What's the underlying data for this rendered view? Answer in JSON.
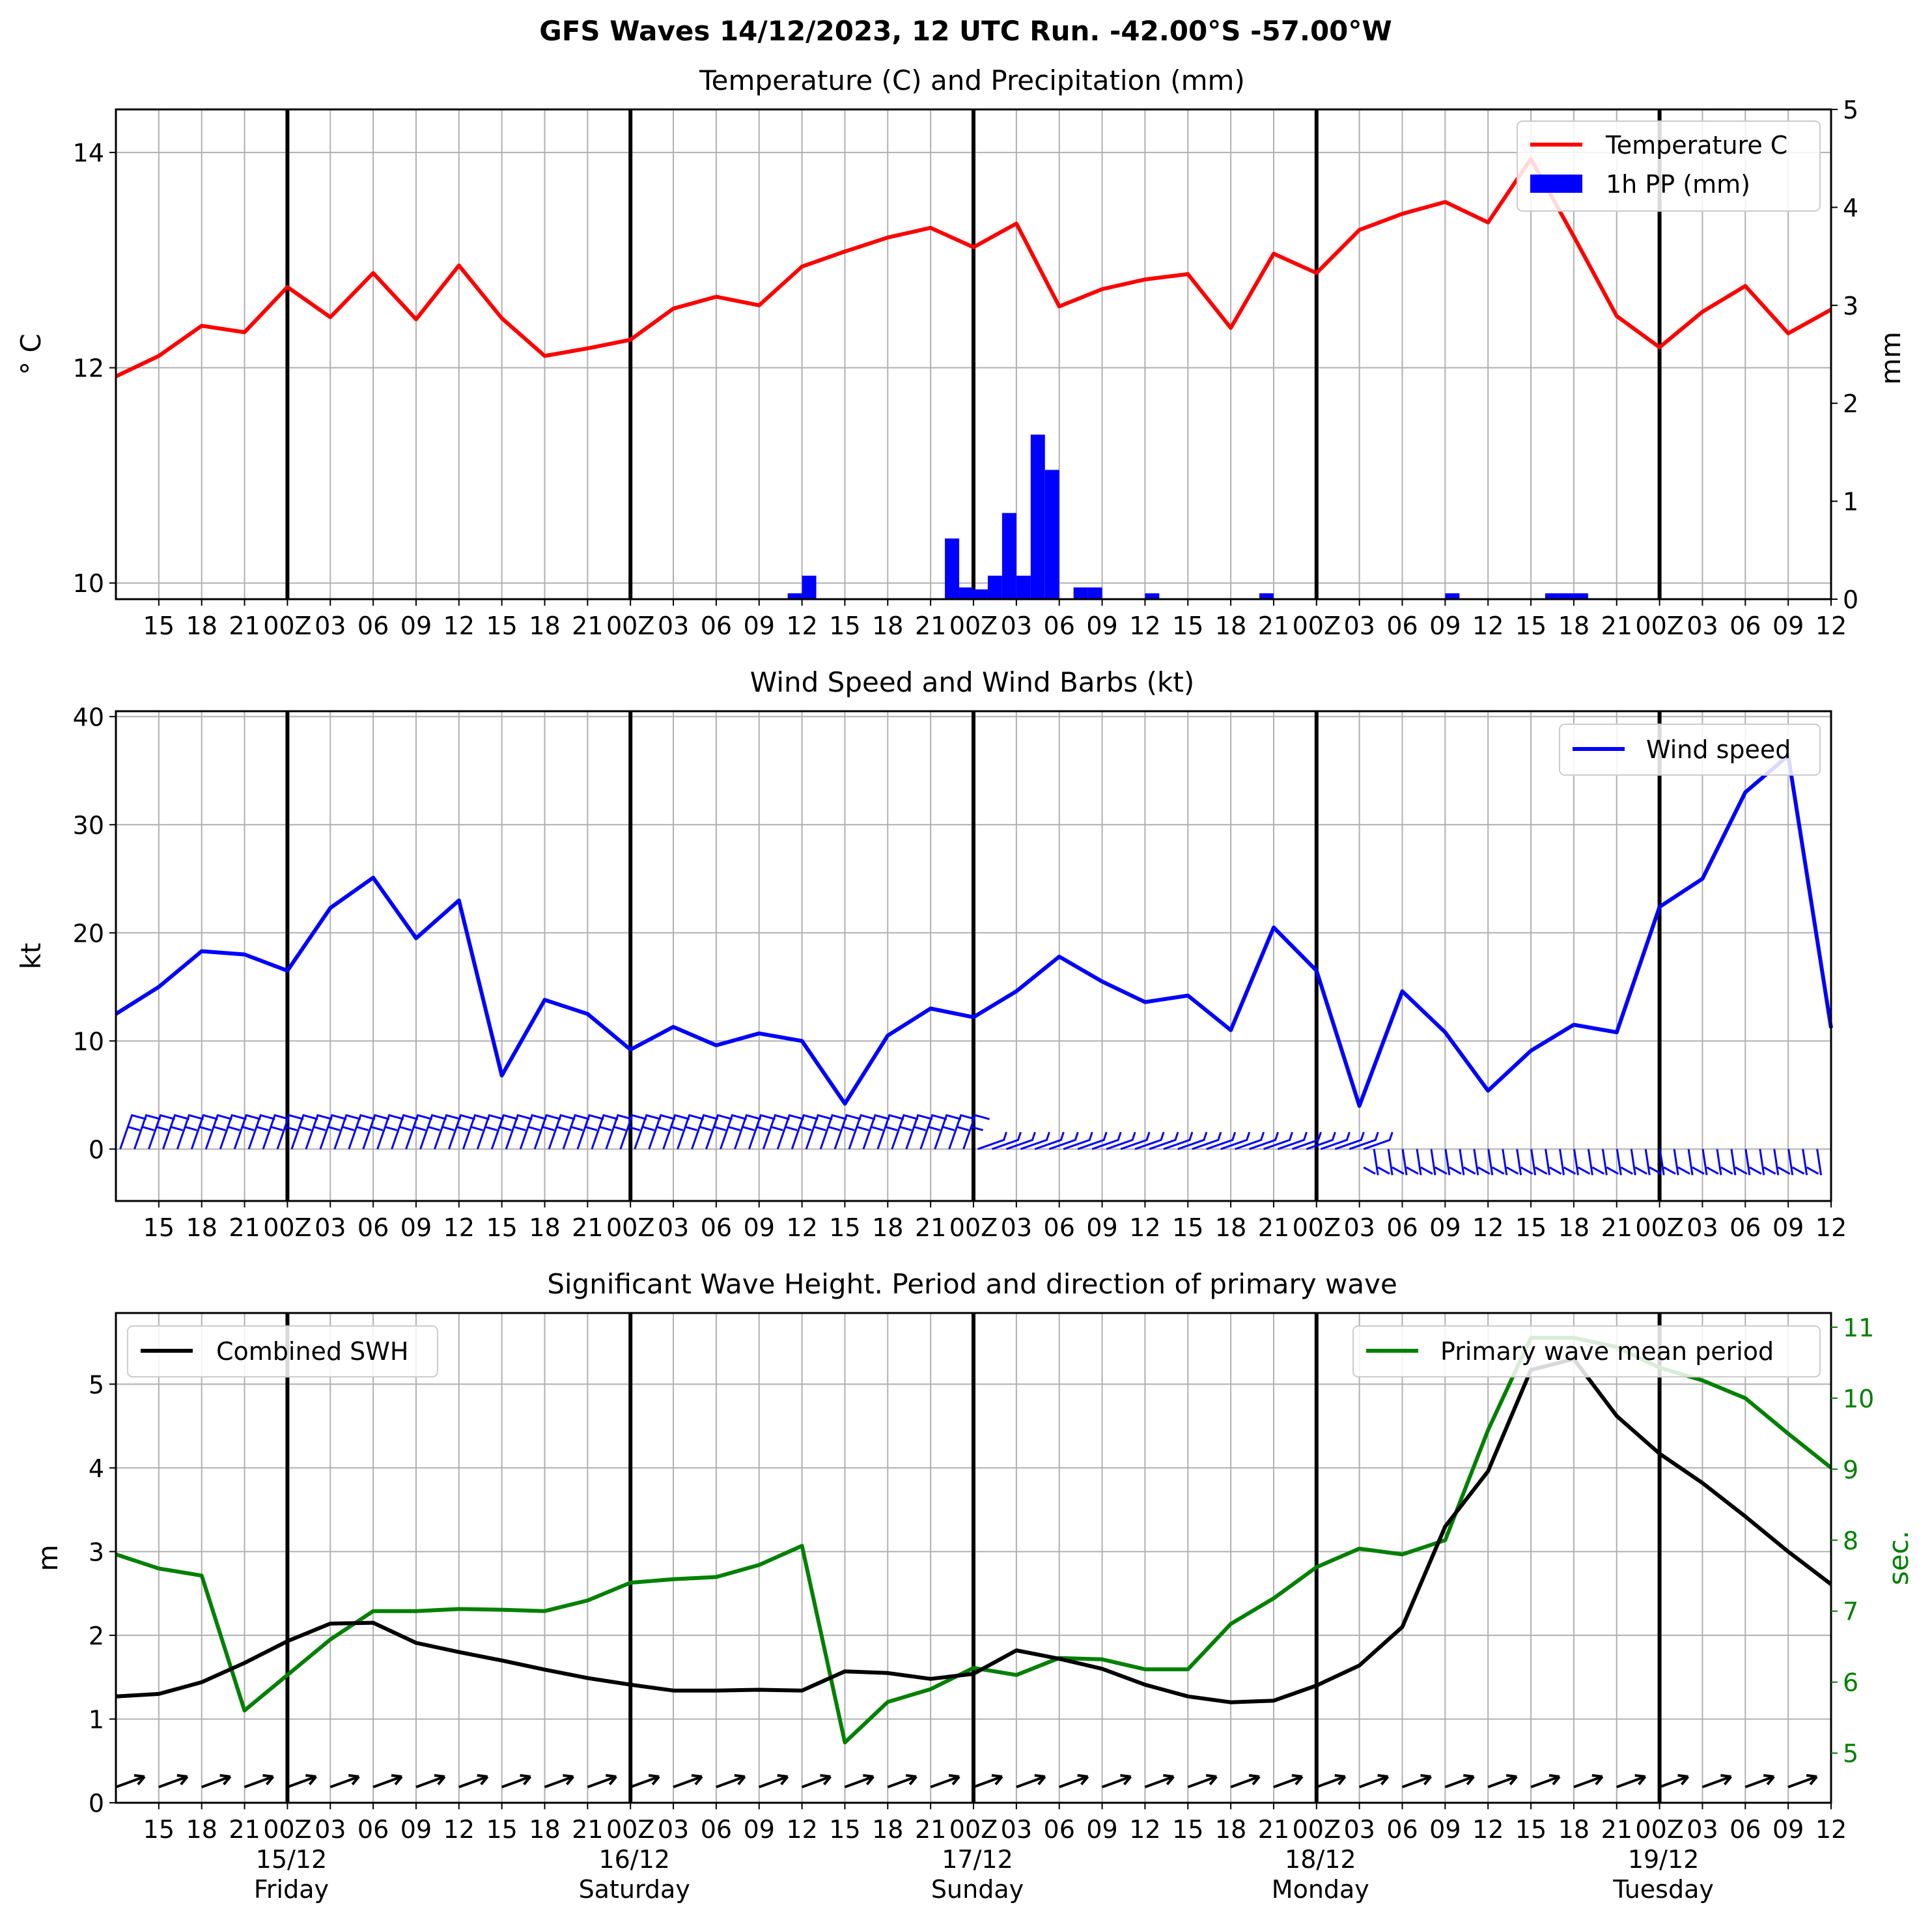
{
  "figure": {
    "title": "GFS Waves 14/12/2023, 12 UTC Run. -42.00°S -57.00°W",
    "day_labels": [
      {
        "date": "15/12",
        "day": "Friday"
      },
      {
        "date": "16/12",
        "day": "Saturday"
      },
      {
        "date": "17/12",
        "day": "Sunday"
      },
      {
        "date": "18/12",
        "day": "Monday"
      },
      {
        "date": "19/12",
        "day": "Tuesday"
      }
    ],
    "x_tick_labels": [
      "15",
      "18",
      "21",
      "00Z",
      "03",
      "06",
      "09",
      "12",
      "15",
      "18",
      "21",
      "00Z",
      "03",
      "06",
      "09",
      "12",
      "15",
      "18",
      "21",
      "00Z",
      "03",
      "06",
      "09",
      "12",
      "15",
      "18",
      "21",
      "00Z",
      "03",
      "06",
      "09",
      "12",
      "15",
      "18",
      "21",
      "00Z",
      "03",
      "06",
      "09",
      "12"
    ]
  },
  "chart_data": [
    {
      "type": "line",
      "title": "Temperature (C) and Precipitation (mm)",
      "x_unit": "hours since 14/12/2023 12 UTC",
      "ylabel": "° C",
      "y2label": "mm",
      "ylim": [
        9.85,
        14.4
      ],
      "y2lim": [
        0,
        5
      ],
      "yticks": [
        10,
        12,
        14
      ],
      "y2ticks": [
        0,
        1,
        2,
        3,
        4,
        5
      ],
      "legend_position": "top-right",
      "grid": true,
      "series": [
        {
          "name": "Temperature C",
          "color": "#ff0000",
          "x": [
            0,
            3,
            6,
            9,
            12,
            15,
            18,
            21,
            24,
            27,
            30,
            33,
            36,
            39,
            42,
            45,
            48,
            51,
            54,
            57,
            60,
            63,
            66,
            69,
            72,
            75,
            78,
            81,
            84,
            87,
            90,
            93,
            96,
            99,
            102,
            105,
            108,
            111,
            114,
            117,
            120
          ],
          "y": [
            11.92,
            12.11,
            12.39,
            12.33,
            12.75,
            12.47,
            12.88,
            12.45,
            12.95,
            12.46,
            12.11,
            12.18,
            12.26,
            12.55,
            12.66,
            12.58,
            12.94,
            13.08,
            13.21,
            13.3,
            13.12,
            13.34,
            12.57,
            12.73,
            12.82,
            12.87,
            12.37,
            13.06,
            12.88,
            13.28,
            13.43,
            13.54,
            13.35,
            13.94,
            13.22,
            12.48,
            12.19,
            12.52,
            12.76,
            12.32,
            12.54
          ]
        },
        {
          "name": "1h PP (mm)",
          "color": "#0000ff",
          "kind": "bar",
          "x": [
            47.5,
            48.5,
            58.5,
            59.5,
            60.5,
            61.5,
            62.5,
            63.5,
            64.5,
            65.5,
            67.5,
            68.5,
            72.5,
            80.5,
            93.5,
            100.5,
            101.5,
            102.5
          ],
          "y": [
            0.06,
            0.24,
            0.62,
            0.12,
            0.1,
            0.24,
            0.88,
            0.24,
            1.68,
            1.32,
            0.12,
            0.12,
            0.06,
            0.06,
            0.06,
            0.06,
            0.06,
            0.06
          ]
        }
      ]
    },
    {
      "type": "line",
      "title": "Wind Speed and Wind Barbs (kt)",
      "ylabel": "kt",
      "ylim": [
        -4.8,
        40.5
      ],
      "yticks": [
        0,
        10,
        20,
        30,
        40
      ],
      "legend_position": "top-right",
      "grid": true,
      "series": [
        {
          "name": "Wind speed",
          "color": "#0000ff",
          "x": [
            0,
            3,
            6,
            9,
            12,
            15,
            18,
            21,
            24,
            27,
            30,
            33,
            36,
            39,
            42,
            45,
            48,
            51,
            54,
            57,
            60,
            63,
            66,
            69,
            72,
            75,
            78,
            81,
            84,
            87,
            90,
            93,
            96,
            99,
            102,
            105,
            108,
            111,
            114,
            117,
            120
          ],
          "y": [
            12.5,
            15.0,
            18.3,
            18.0,
            16.5,
            22.3,
            25.1,
            19.5,
            23.0,
            6.8,
            13.8,
            12.5,
            9.2,
            11.3,
            9.6,
            10.7,
            10.0,
            4.2,
            10.5,
            13.0,
            12.2,
            14.6,
            17.8,
            15.5,
            13.6,
            14.2,
            11.0,
            20.5,
            16.5,
            4.0,
            14.6,
            10.8,
            5.4,
            9.1,
            11.5,
            10.8,
            22.4,
            25.0,
            33.0,
            36.4,
            11.2
          ]
        }
      ],
      "barbs": {
        "color": "#0000ff",
        "count": 120
      }
    },
    {
      "type": "line",
      "title": "Significant Wave Height. Period and direction of primary wave",
      "ylabel": "m",
      "y2label": "sec.",
      "ylim": [
        0,
        5.85
      ],
      "y2lim": [
        4.3,
        11.2
      ],
      "yticks": [
        0,
        1,
        2,
        3,
        4,
        5
      ],
      "y2ticks": [
        5,
        6,
        7,
        8,
        9,
        10,
        11
      ],
      "grid": true,
      "series": [
        {
          "name": "Combined SWH",
          "color": "#000000",
          "legend_position": "top-left",
          "x": [
            0,
            3,
            6,
            9,
            12,
            15,
            18,
            21,
            24,
            27,
            30,
            33,
            36,
            39,
            42,
            45,
            48,
            51,
            54,
            57,
            60,
            63,
            66,
            69,
            72,
            75,
            78,
            81,
            84,
            87,
            90,
            93,
            96,
            99,
            102,
            105,
            108,
            111,
            114,
            117,
            120
          ],
          "y": [
            1.27,
            1.3,
            1.44,
            1.67,
            1.93,
            2.14,
            2.15,
            1.91,
            1.8,
            1.7,
            1.59,
            1.49,
            1.41,
            1.34,
            1.34,
            1.35,
            1.34,
            1.57,
            1.55,
            1.48,
            1.54,
            1.82,
            1.72,
            1.6,
            1.41,
            1.27,
            1.2,
            1.22,
            1.4,
            1.64,
            2.1,
            3.3,
            3.96,
            5.17,
            5.3,
            4.62,
            4.17,
            3.82,
            3.42,
            3.0,
            2.61
          ]
        },
        {
          "name": "Primary wave mean period",
          "color": "#008000",
          "legend_position": "top-right",
          "x": [
            0,
            3,
            6,
            9,
            12,
            15,
            18,
            21,
            24,
            27,
            30,
            33,
            36,
            39,
            42,
            45,
            48,
            51,
            54,
            57,
            60,
            63,
            66,
            69,
            72,
            75,
            78,
            81,
            84,
            87,
            90,
            93,
            96,
            99,
            102,
            105,
            108,
            111,
            114,
            117,
            120
          ],
          "y": [
            7.8,
            7.6,
            7.5,
            5.6,
            6.1,
            6.6,
            7.0,
            7.0,
            7.03,
            7.02,
            7.0,
            7.15,
            7.4,
            7.45,
            7.48,
            7.65,
            7.92,
            5.15,
            5.72,
            5.9,
            6.2,
            6.1,
            6.34,
            6.32,
            6.18,
            6.18,
            6.82,
            7.18,
            7.62,
            7.88,
            7.8,
            8.0,
            9.55,
            10.85,
            10.85,
            10.72,
            10.43,
            10.25,
            10.0,
            9.5,
            9.02
          ]
        }
      ],
      "wave_direction_arrows": {
        "color": "#000000"
      }
    }
  ]
}
